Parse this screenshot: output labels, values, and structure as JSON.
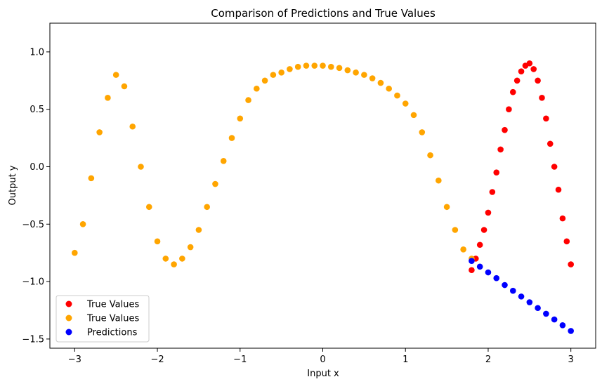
{
  "chart_data": {
    "type": "scatter",
    "title": "Comparison of Predictions and True Values",
    "xlabel": "Input x",
    "ylabel": "Output y",
    "xlim": [
      -3.3,
      3.3
    ],
    "ylim": [
      -1.58,
      1.25
    ],
    "xticks": [
      -3,
      -2,
      -1,
      0,
      1,
      2,
      3
    ],
    "xtick_labels": [
      "−3",
      "−2",
      "−1",
      "0",
      "1",
      "2",
      "3"
    ],
    "yticks": [
      -1.5,
      -1.0,
      -0.5,
      0.0,
      0.5,
      1.0
    ],
    "ytick_labels": [
      "−1.5",
      "−1.0",
      "−0.5",
      "0.0",
      "0.5",
      "1.0"
    ],
    "grid": false,
    "legend_position": "lower-left",
    "legend": [
      "True Values",
      "True Values",
      "Predictions"
    ],
    "series": [
      {
        "name": "True Values",
        "color": "#ff0000",
        "marker": "circle",
        "x": [
          1.8,
          1.85,
          1.9,
          1.95,
          2.0,
          2.05,
          2.1,
          2.15,
          2.2,
          2.25,
          2.3,
          2.35,
          2.4,
          2.45,
          2.5,
          2.55,
          2.6,
          2.65,
          2.7,
          2.75,
          2.8,
          2.85,
          2.9,
          2.95,
          3.0
        ],
        "y": [
          -0.9,
          -0.8,
          -0.68,
          -0.55,
          -0.4,
          -0.22,
          -0.05,
          0.15,
          0.32,
          0.5,
          0.65,
          0.75,
          0.83,
          0.88,
          0.9,
          0.85,
          0.75,
          0.6,
          0.42,
          0.2,
          0.0,
          -0.2,
          -0.45,
          -0.65,
          -0.85
        ]
      },
      {
        "name": "True Values",
        "color": "#ffa500",
        "marker": "circle",
        "x": [
          -3.0,
          -2.9,
          -2.8,
          -2.7,
          -2.6,
          -2.5,
          -2.4,
          -2.3,
          -2.2,
          -2.1,
          -2.0,
          -1.9,
          -1.8,
          -1.7,
          -1.6,
          -1.5,
          -1.4,
          -1.3,
          -1.2,
          -1.1,
          -1.0,
          -0.9,
          -0.8,
          -0.7,
          -0.6,
          -0.5,
          -0.4,
          -0.3,
          -0.2,
          -0.1,
          0.0,
          0.1,
          0.2,
          0.3,
          0.4,
          0.5,
          0.6,
          0.7,
          0.8,
          0.9,
          1.0,
          1.1,
          1.2,
          1.3,
          1.4,
          1.5,
          1.6,
          1.7,
          1.8
        ],
        "y": [
          -0.75,
          -0.5,
          -0.1,
          0.3,
          0.6,
          0.8,
          0.7,
          0.35,
          0.0,
          -0.35,
          -0.65,
          -0.8,
          -0.85,
          -0.8,
          -0.7,
          -0.55,
          -0.35,
          -0.15,
          0.05,
          0.25,
          0.42,
          0.58,
          0.68,
          0.75,
          0.8,
          0.82,
          0.85,
          0.87,
          0.88,
          0.88,
          0.88,
          0.87,
          0.86,
          0.84,
          0.82,
          0.8,
          0.77,
          0.73,
          0.68,
          0.62,
          0.55,
          0.45,
          0.3,
          0.1,
          -0.12,
          -0.35,
          -0.55,
          -0.72,
          -0.8
        ]
      },
      {
        "name": "Predictions",
        "color": "#0000ff",
        "marker": "circle",
        "x": [
          1.8,
          1.9,
          2.0,
          2.1,
          2.2,
          2.3,
          2.4,
          2.5,
          2.6,
          2.7,
          2.8,
          2.9,
          3.0
        ],
        "y": [
          -0.82,
          -0.87,
          -0.92,
          -0.97,
          -1.03,
          -1.08,
          -1.13,
          -1.18,
          -1.23,
          -1.28,
          -1.33,
          -1.38,
          -1.43
        ]
      }
    ]
  }
}
